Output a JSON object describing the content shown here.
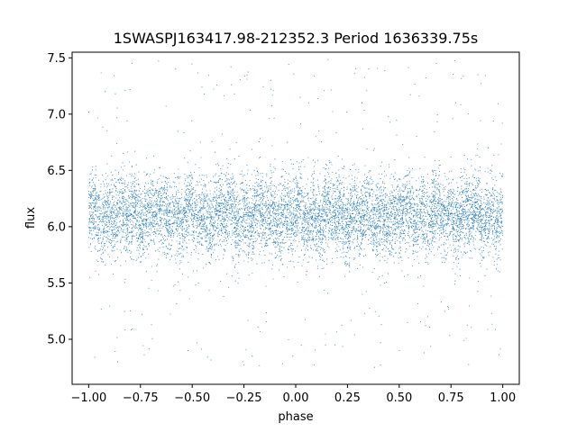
{
  "chart_data": {
    "type": "scatter",
    "title": "1SWASPJ163417.98-212352.3 Period 1636339.75s",
    "xlabel": "phase",
    "ylabel": "flux",
    "xlim": [
      -1.08,
      1.08
    ],
    "ylim": [
      4.6,
      7.55
    ],
    "x_ticks": [
      -1.0,
      -0.75,
      -0.5,
      -0.25,
      0.0,
      0.25,
      0.5,
      0.75,
      1.0
    ],
    "x_tick_labels": [
      "−1.00",
      "−0.75",
      "−0.50",
      "−0.25",
      "0.00",
      "0.25",
      "0.50",
      "0.75",
      "1.00"
    ],
    "y_ticks": [
      5.0,
      5.5,
      6.0,
      6.5,
      7.0,
      7.5
    ],
    "y_tick_labels": [
      "5.0",
      "5.5",
      "6.0",
      "6.5",
      "7.0",
      "7.5"
    ],
    "grid": false,
    "legend": "none",
    "marker_color": "#1f77b4",
    "series": [
      {
        "phase_range": [
          -1.0,
          1.0
        ],
        "flux_median": 6.1,
        "flux_core_spread": [
          5.75,
          6.45
        ],
        "flux_outlier_range": [
          4.75,
          7.5
        ],
        "points": [
          [
            -0.98,
            6.12
          ],
          [
            -0.95,
            5.85
          ],
          [
            -0.93,
            6.4
          ],
          [
            -0.9,
            6.05
          ],
          [
            -0.87,
            5.7
          ],
          [
            -0.84,
            6.3
          ],
          [
            -0.8,
            6.1
          ],
          [
            -0.77,
            6.55
          ],
          [
            -0.74,
            5.9
          ],
          [
            -0.7,
            6.2
          ],
          [
            -0.67,
            5.6
          ],
          [
            -0.64,
            6.0
          ],
          [
            -0.6,
            6.35
          ],
          [
            -0.57,
            6.08
          ],
          [
            -0.54,
            5.8
          ],
          [
            -0.5,
            6.15
          ],
          [
            -0.47,
            5.5
          ],
          [
            -0.44,
            6.25
          ],
          [
            -0.4,
            6.0
          ],
          [
            -0.37,
            6.45
          ],
          [
            -0.34,
            5.95
          ],
          [
            -0.3,
            6.1
          ],
          [
            -0.27,
            5.75
          ],
          [
            -0.24,
            6.3
          ],
          [
            -0.2,
            6.5
          ],
          [
            -0.17,
            6.05
          ],
          [
            -0.14,
            5.85
          ],
          [
            -0.1,
            6.6
          ],
          [
            -0.07,
            6.2
          ],
          [
            -0.04,
            6.75
          ],
          [
            0.0,
            6.1
          ],
          [
            0.03,
            5.9
          ],
          [
            0.06,
            6.3
          ],
          [
            0.1,
            6.0
          ],
          [
            0.13,
            5.7
          ],
          [
            0.16,
            6.15
          ],
          [
            0.2,
            6.4
          ],
          [
            0.23,
            5.95
          ],
          [
            0.26,
            5.6
          ],
          [
            0.3,
            6.1
          ],
          [
            0.33,
            6.35
          ],
          [
            0.36,
            5.85
          ],
          [
            0.4,
            6.05
          ],
          [
            0.43,
            5.5
          ],
          [
            0.46,
            6.2
          ],
          [
            0.5,
            5.9
          ],
          [
            0.53,
            6.45
          ],
          [
            0.56,
            6.0
          ],
          [
            0.6,
            6.25
          ],
          [
            0.63,
            5.8
          ],
          [
            0.66,
            6.5
          ],
          [
            0.7,
            6.1
          ],
          [
            0.73,
            5.75
          ],
          [
            0.76,
            6.3
          ],
          [
            0.8,
            6.05
          ],
          [
            0.83,
            6.6
          ],
          [
            0.86,
            5.9
          ],
          [
            0.9,
            6.2
          ],
          [
            0.93,
            6.7
          ],
          [
            0.96,
            6.0
          ],
          [
            0.99,
            6.15
          ],
          [
            -0.92,
            7.2
          ],
          [
            -0.58,
            7.4
          ],
          [
            -0.12,
            7.3
          ],
          [
            0.32,
            7.1
          ],
          [
            0.68,
            7.45
          ],
          [
            0.88,
            7.35
          ],
          [
            -0.86,
            4.8
          ],
          [
            -0.52,
            4.9
          ],
          [
            -0.21,
            4.85
          ],
          [
            0.19,
            4.95
          ],
          [
            0.38,
            4.75
          ],
          [
            0.62,
            4.88
          ]
        ]
      }
    ]
  }
}
